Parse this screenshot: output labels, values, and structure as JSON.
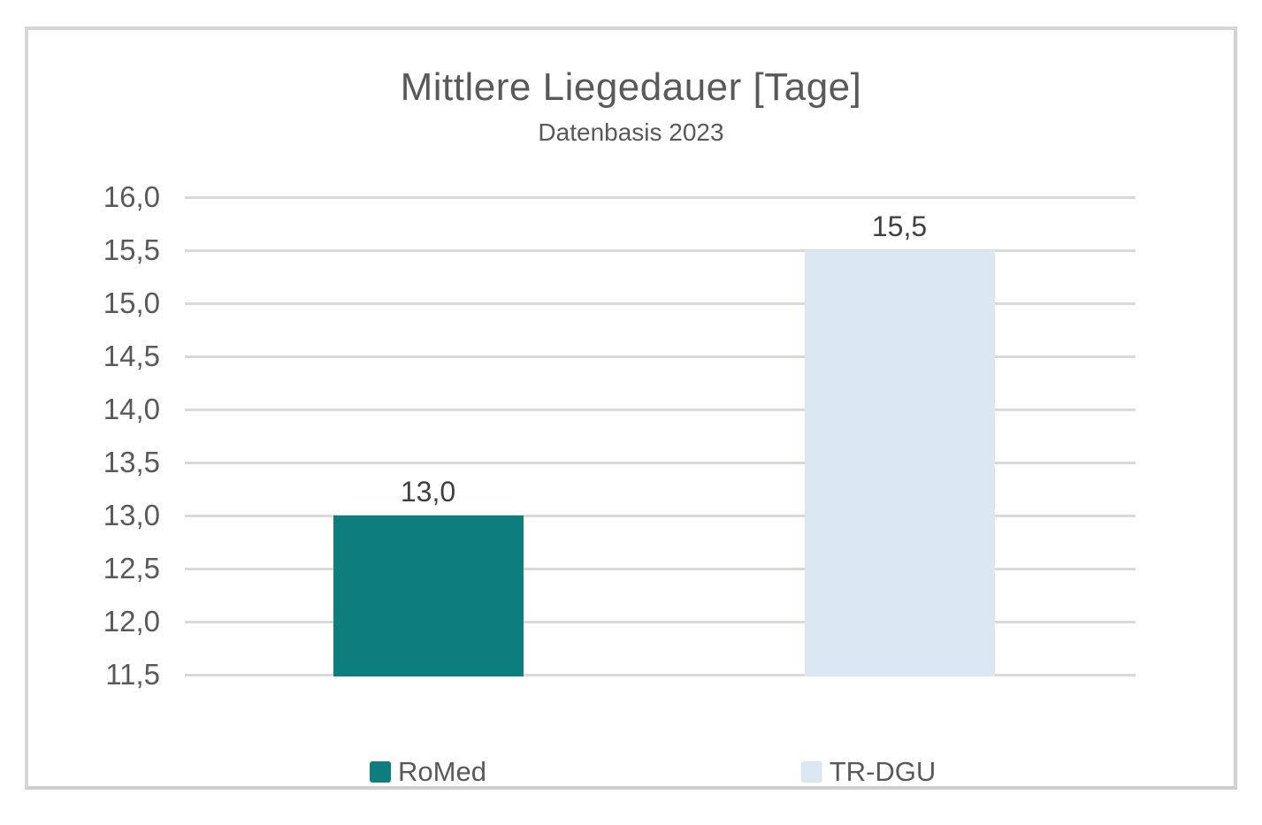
{
  "chart": {
    "title": "Mittlere Liegedauer [Tage]",
    "subtitle": "Datenbasis 2023"
  },
  "chart_data": {
    "type": "bar",
    "title": "Mittlere Liegedauer [Tage]",
    "subtitle": "Datenbasis 2023",
    "categories": [
      "RoMed",
      "TR-DGU"
    ],
    "values": [
      13.0,
      15.5
    ],
    "value_labels": [
      "13,0",
      "15,5"
    ],
    "ylim": [
      11.5,
      16.0
    ],
    "ytick_step": 0.5,
    "yticks": [
      16.0,
      15.5,
      15.0,
      14.5,
      14.0,
      13.5,
      13.0,
      12.5,
      12.0,
      11.5
    ],
    "ytick_labels": [
      "16,0",
      "15,5",
      "15,0",
      "14,5",
      "14,0",
      "13,5",
      "13,0",
      "12,5",
      "12,0",
      "11,5"
    ],
    "grid": true,
    "legend_position": "bottom",
    "series_colors": [
      "#0d7d7e",
      "#dbe7f2"
    ]
  },
  "legend": {
    "items": [
      {
        "label": "RoMed",
        "color": "#0d7d7e"
      },
      {
        "label": "TR-DGU",
        "color": "#dbe7f2"
      }
    ]
  },
  "colors": {
    "gridline": "#d9d9d9",
    "frame_border": "#d6d6d6",
    "title_text": "#595959",
    "label_text": "#404040"
  }
}
